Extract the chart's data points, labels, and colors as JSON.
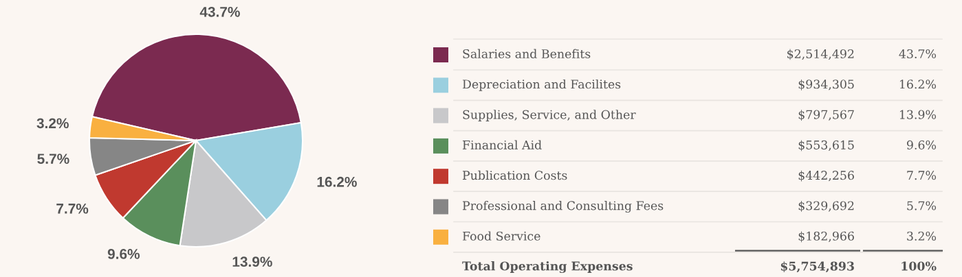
{
  "chart_data": {
    "type": "pie",
    "categories": [
      "Salaries and Benefits",
      "Depreciation and Facilites",
      "Supplies, Service, and Other",
      "Financial Aid",
      "Publication Costs",
      "Professional and Consulting Fees",
      "Food Service"
    ],
    "values": [
      43.7,
      16.2,
      13.9,
      9.6,
      7.7,
      5.7,
      3.2
    ],
    "value_labels": [
      "43.7%",
      "16.2%",
      "13.9%",
      "9.6%",
      "7.7%",
      "5.7%",
      "3.2%"
    ],
    "colors": [
      "#7b2a50",
      "#9acfdf",
      "#c8c8ca",
      "#5a8f5c",
      "#c0392f",
      "#868686",
      "#f9b040"
    ],
    "legend": "right",
    "annotations": [
      "$2,514,492",
      "$934,305",
      "$797,567",
      "$553,615",
      "$442,256",
      "$329,692",
      "$182,966",
      "Total Operating Expenses",
      "$5,754,893",
      "100%"
    ]
  }
}
